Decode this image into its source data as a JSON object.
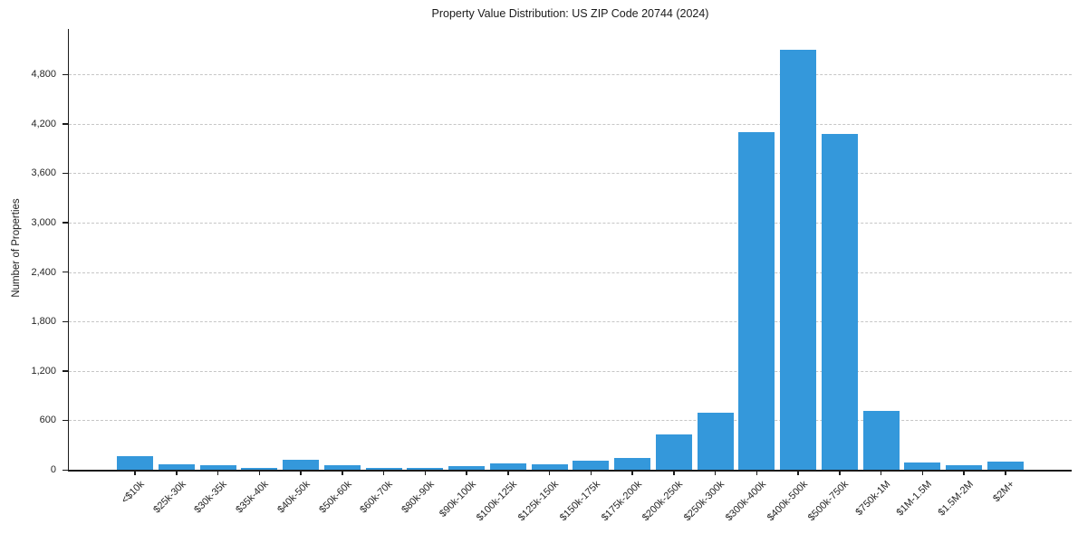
{
  "chart_data": {
    "type": "bar",
    "title": "Property Value Distribution: US ZIP Code 20744 (2024)",
    "xlabel": "",
    "ylabel": "Number of Properties",
    "categories": [
      "<$10k",
      "$25k-30k",
      "$30k-35k",
      "$35k-40k",
      "$40k-50k",
      "$50k-60k",
      "$60k-70k",
      "$80k-90k",
      "$90k-100k",
      "$100k-125k",
      "$125k-150k",
      "$150k-175k",
      "$175k-200k",
      "$200k-250k",
      "$250k-300k",
      "$300k-400k",
      "$400k-500k",
      "$500k-750k",
      "$750k-1M",
      "$1M-1.5M",
      "$1.5M-2M",
      "$2M+"
    ],
    "values": [
      160,
      70,
      50,
      25,
      120,
      55,
      20,
      25,
      40,
      75,
      70,
      115,
      140,
      430,
      690,
      4100,
      5100,
      4080,
      715,
      90,
      60,
      95
    ],
    "yticks": [
      0,
      600,
      1200,
      1800,
      2400,
      3000,
      3600,
      4200,
      4800
    ],
    "ytick_labels": [
      "0",
      "600",
      "1,200",
      "1,800",
      "2,400",
      "3,000",
      "3,600",
      "4,200",
      "4,800"
    ],
    "ylim": [
      0,
      5350
    ],
    "grid": "horizontal-dashed",
    "legend": "none",
    "bar_color": "#3498db",
    "grid_color": "#c6c6c6",
    "axis_color": "#1a1a1a",
    "text_color": "#262626",
    "background": "#ffffff"
  }
}
